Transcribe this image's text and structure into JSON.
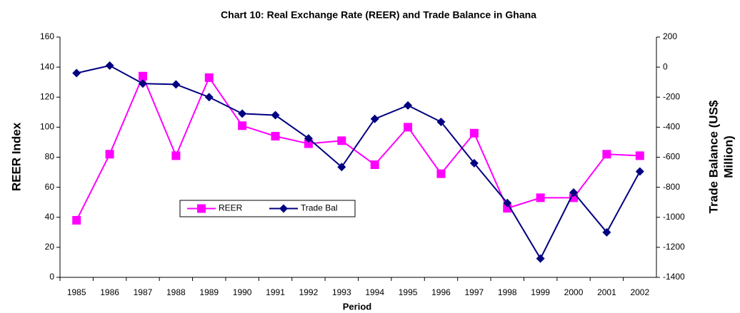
{
  "chart_data": {
    "type": "line",
    "title": "Chart 10: Real Exchange Rate (REER) and Trade Balance in Ghana",
    "xlabel": "Period",
    "ylabel": "REER Index",
    "y2label": [
      "Trade Balance (US$",
      "Million)"
    ],
    "categories": [
      "1985",
      "1986",
      "1987",
      "1988",
      "1989",
      "1990",
      "1991",
      "1992",
      "1993",
      "1994",
      "1995",
      "1996",
      "1997",
      "1998",
      "1999",
      "2000",
      "2001",
      "2002"
    ],
    "series": [
      {
        "name": "REER",
        "color": "#ff00ff",
        "marker": "square",
        "axis": "y",
        "values": [
          38,
          82,
          134,
          81,
          133,
          101,
          94,
          89,
          91,
          75,
          100,
          69,
          96,
          46,
          53,
          53,
          82,
          81
        ]
      },
      {
        "name": "Trade Bal",
        "color": "#000080",
        "marker": "diamond",
        "axis": "y2",
        "values": [
          -40,
          10,
          -110,
          -115,
          -200,
          -310,
          -320,
          -475,
          -665,
          -345,
          -255,
          -365,
          -640,
          -905,
          -1275,
          -835,
          -1100,
          -695
        ]
      }
    ],
    "ylim": [
      0,
      160
    ],
    "yticks": [
      0,
      20,
      40,
      60,
      80,
      100,
      120,
      140,
      160
    ],
    "y2lim": [
      -1400,
      200
    ],
    "y2ticks": [
      -1400,
      -1200,
      -1000,
      -800,
      -600,
      -400,
      -200,
      0,
      200
    ],
    "grid": false,
    "legend": "center"
  }
}
